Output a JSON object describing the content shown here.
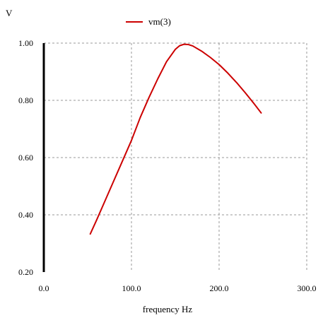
{
  "chart_data": {
    "type": "line",
    "title": "",
    "xlabel": "frequency Hz",
    "ylabel": "V",
    "xlim": [
      0,
      300
    ],
    "ylim": [
      0.2,
      1.0
    ],
    "x_ticks": [
      "0.0",
      "100.0",
      "200.0",
      "300.0"
    ],
    "y_ticks": [
      "0.20",
      "0.40",
      "0.60",
      "0.80",
      "1.00"
    ],
    "grid": true,
    "legend_position": "top-center",
    "series": [
      {
        "name": "vm(3)",
        "color": "#cc0000",
        "x": [
          53,
          60,
          70,
          80,
          90,
          100,
          110,
          120,
          130,
          140,
          150,
          155,
          160,
          165,
          170,
          180,
          190,
          200,
          210,
          220,
          230,
          240,
          248
        ],
        "y": [
          0.333,
          0.38,
          0.45,
          0.52,
          0.59,
          0.66,
          0.74,
          0.81,
          0.875,
          0.935,
          0.978,
          0.991,
          0.996,
          0.995,
          0.99,
          0.972,
          0.95,
          0.925,
          0.895,
          0.862,
          0.826,
          0.788,
          0.756
        ]
      }
    ]
  }
}
